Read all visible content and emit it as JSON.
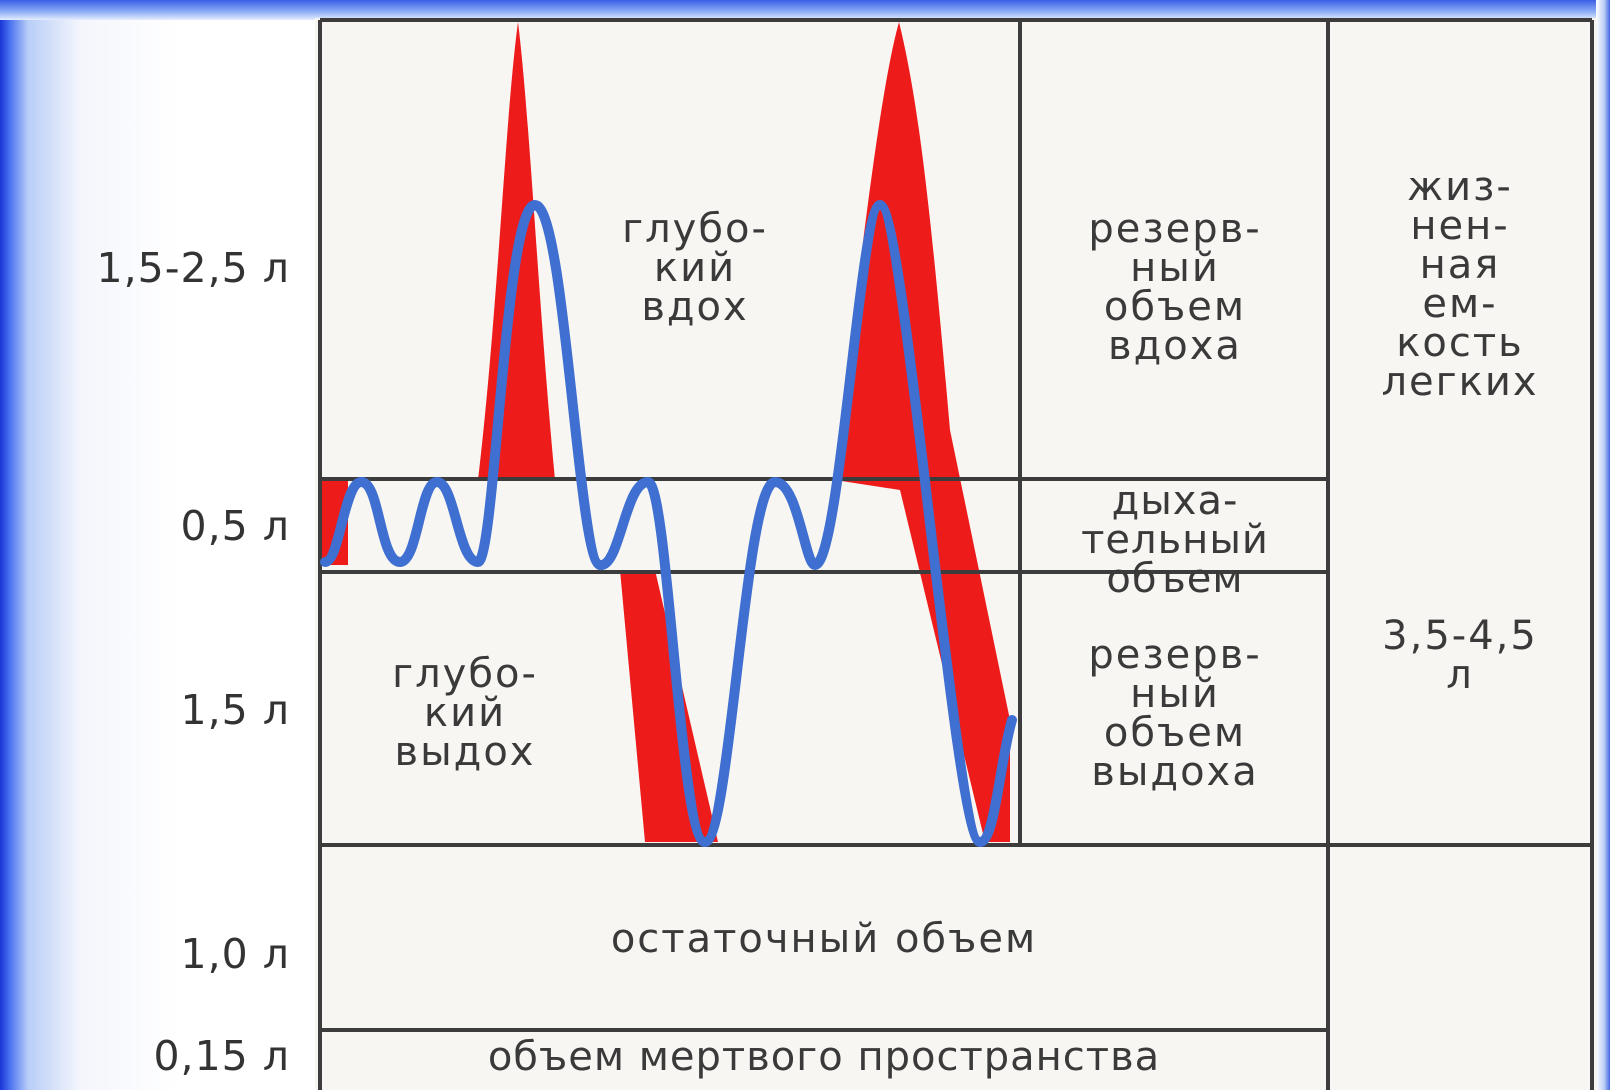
{
  "y_labels": [
    "1,5-2,5 л",
    "0,5 л",
    "1,5 л",
    "1,0 л",
    "0,15 л"
  ],
  "regions": {
    "deep_inhale": "глубо-\nкий\nвдох",
    "deep_exhale": "глубо-\nкий\nвыдох",
    "inspiratory_reserve": "резерв-\nный\nобъем\nвдоха",
    "tidal_volume": "дыха-\nтельный\nобъем",
    "expiratory_reserve": "резерв-\nный\nобъем\nвыдоха",
    "vital_capacity": "жиз-\nнен-\nная\nем-\nкость\nлегких",
    "vital_capacity_value": "3,5-4,5\nл",
    "residual_volume": "остаточный объем",
    "dead_space": "объем мертвого пространства"
  },
  "colors": {
    "red_fill": "#ee1b1b",
    "blue_curve": "#3f6fd0",
    "grid_lines": "#3c3c3c"
  }
}
